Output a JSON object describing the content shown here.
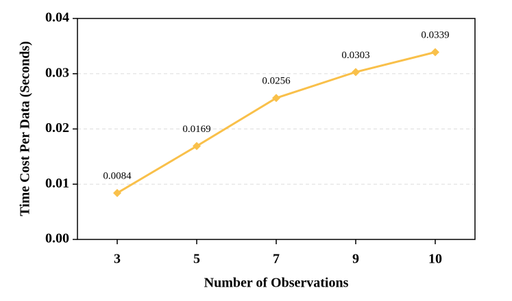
{
  "chart_data": {
    "type": "line",
    "x_label": "Number of Observations",
    "y_label": "Time Cost Per Data (Seconds)",
    "categories": [
      "3",
      "5",
      "7",
      "9",
      "10"
    ],
    "series": [
      {
        "color": "#f9c04a",
        "values": [
          0.0084,
          0.0169,
          0.0256,
          0.0303,
          0.0339
        ]
      }
    ],
    "ylim": [
      0,
      0.04
    ],
    "yticks": [
      {
        "value": 0,
        "label": "0.00"
      },
      0.01,
      0.02,
      0.03,
      0.04
    ],
    "grid": true
  }
}
